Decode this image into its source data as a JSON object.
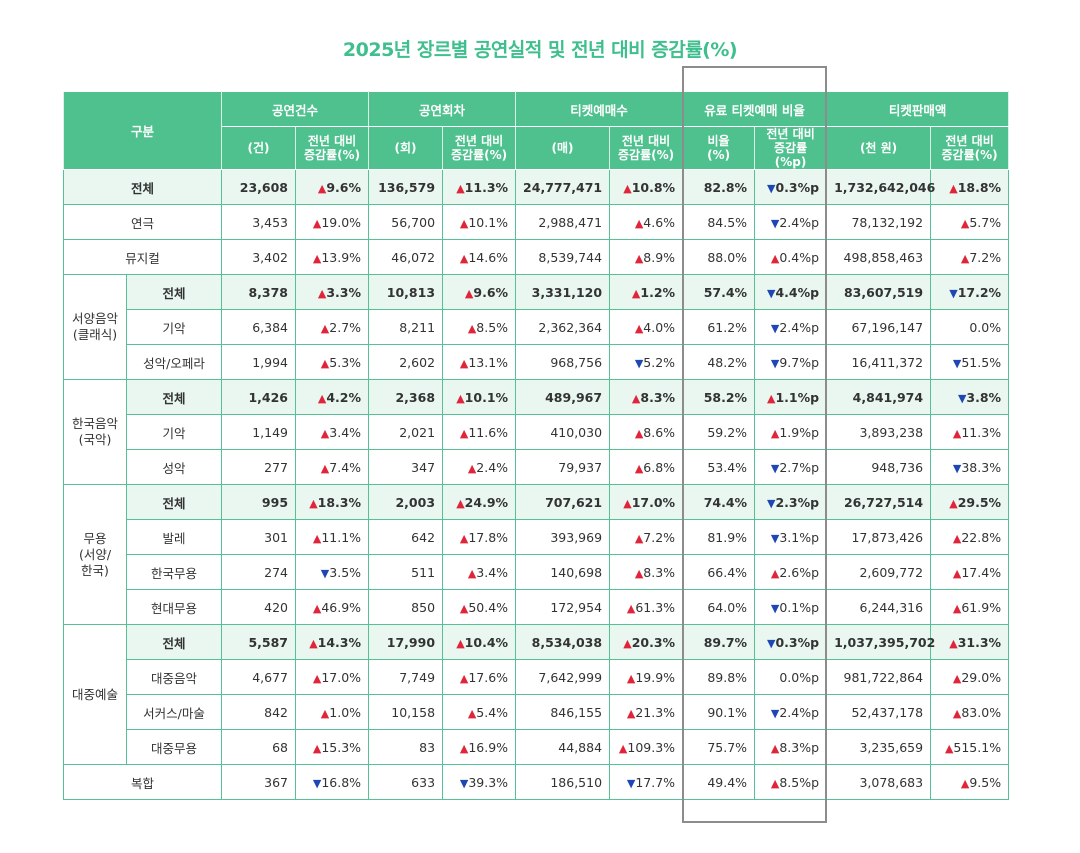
{
  "title": "2025년 장르별 공연실적 및 전년 대비 증감률(%)",
  "header": {
    "category": "구분",
    "groups": [
      "공연건수",
      "공연회차",
      "티켓예매수",
      "유료 티켓예매 비율",
      "티켓판매액"
    ],
    "subs": [
      "(건)",
      "전년 대비\n증감률(%)",
      "(회)",
      "전년 대비\n증감률(%)",
      "(매)",
      "전년 대비\n증감률(%)",
      "비율\n(%)",
      "전년 대비\n증감률(%p)",
      "(천 원)",
      "전년 대비\n증감률(%)"
    ]
  },
  "rows": [
    {
      "group": "전체",
      "label": "",
      "sub": true,
      "cells": [
        "23,608",
        "▲9.6%",
        "136,579",
        "▲11.3%",
        "24,777,471",
        "▲10.8%",
        "82.8%",
        "▼0.3%p",
        "1,732,642,046",
        "▲18.8%"
      ]
    },
    {
      "group": "연극",
      "label": "",
      "sub": false,
      "cells": [
        "3,453",
        "▲19.0%",
        "56,700",
        "▲10.1%",
        "2,988,471",
        "▲4.6%",
        "84.5%",
        "▼2.4%p",
        "78,132,192",
        "▲5.7%"
      ]
    },
    {
      "group": "뮤지컬",
      "label": "",
      "sub": false,
      "cells": [
        "3,402",
        "▲13.9%",
        "46,072",
        "▲14.6%",
        "8,539,744",
        "▲8.9%",
        "88.0%",
        "▲0.4%p",
        "498,858,463",
        "▲7.2%"
      ]
    },
    {
      "group": "서양음악\n(클래식)",
      "label": "전체",
      "sub": true,
      "cells": [
        "8,378",
        "▲3.3%",
        "10,813",
        "▲9.6%",
        "3,331,120",
        "▲1.2%",
        "57.4%",
        "▼4.4%p",
        "83,607,519",
        "▼17.2%"
      ]
    },
    {
      "group": "",
      "label": "기악",
      "sub": false,
      "cells": [
        "6,384",
        "▲2.7%",
        "8,211",
        "▲8.5%",
        "2,362,364",
        "▲4.0%",
        "61.2%",
        "▼2.4%p",
        "67,196,147",
        "0.0%"
      ]
    },
    {
      "group": "",
      "label": "성악/오페라",
      "sub": false,
      "cells": [
        "1,994",
        "▲5.3%",
        "2,602",
        "▲13.1%",
        "968,756",
        "▼5.2%",
        "48.2%",
        "▼9.7%p",
        "16,411,372",
        "▼51.5%"
      ]
    },
    {
      "group": "한국음악\n(국악)",
      "label": "전체",
      "sub": true,
      "cells": [
        "1,426",
        "▲4.2%",
        "2,368",
        "▲10.1%",
        "489,967",
        "▲8.3%",
        "58.2%",
        "▲1.1%p",
        "4,841,974",
        "▼3.8%"
      ]
    },
    {
      "group": "",
      "label": "기악",
      "sub": false,
      "cells": [
        "1,149",
        "▲3.4%",
        "2,021",
        "▲11.6%",
        "410,030",
        "▲8.6%",
        "59.2%",
        "▲1.9%p",
        "3,893,238",
        "▲11.3%"
      ]
    },
    {
      "group": "",
      "label": "성악",
      "sub": false,
      "cells": [
        "277",
        "▲7.4%",
        "347",
        "▲2.4%",
        "79,937",
        "▲6.8%",
        "53.4%",
        "▼2.7%p",
        "948,736",
        "▼38.3%"
      ]
    },
    {
      "group": "무용\n(서양/\n한국)",
      "label": "전체",
      "sub": true,
      "cells": [
        "995",
        "▲18.3%",
        "2,003",
        "▲24.9%",
        "707,621",
        "▲17.0%",
        "74.4%",
        "▼2.3%p",
        "26,727,514",
        "▲29.5%"
      ]
    },
    {
      "group": "",
      "label": "발레",
      "sub": false,
      "cells": [
        "301",
        "▲11.1%",
        "642",
        "▲17.8%",
        "393,969",
        "▲7.2%",
        "81.9%",
        "▼3.1%p",
        "17,873,426",
        "▲22.8%"
      ]
    },
    {
      "group": "",
      "label": "한국무용",
      "sub": false,
      "cells": [
        "274",
        "▼3.5%",
        "511",
        "▲3.4%",
        "140,698",
        "▲8.3%",
        "66.4%",
        "▲2.6%p",
        "2,609,772",
        "▲17.4%"
      ]
    },
    {
      "group": "",
      "label": "현대무용",
      "sub": false,
      "cells": [
        "420",
        "▲46.9%",
        "850",
        "▲50.4%",
        "172,954",
        "▲61.3%",
        "64.0%",
        "▼0.1%p",
        "6,244,316",
        "▲61.9%"
      ]
    },
    {
      "group": "대중예술",
      "label": "전체",
      "sub": true,
      "cells": [
        "5,587",
        "▲14.3%",
        "17,990",
        "▲10.4%",
        "8,534,038",
        "▲20.3%",
        "89.7%",
        "▼0.3%p",
        "1,037,395,702",
        "▲31.3%"
      ]
    },
    {
      "group": "",
      "label": "대중음악",
      "sub": false,
      "cells": [
        "4,677",
        "▲17.0%",
        "7,749",
        "▲17.6%",
        "7,642,999",
        "▲19.9%",
        "89.8%",
        "0.0%p",
        "981,722,864",
        "▲29.0%"
      ]
    },
    {
      "group": "",
      "label": "서커스/마술",
      "sub": false,
      "cells": [
        "842",
        "▲1.0%",
        "10,158",
        "▲5.4%",
        "846,155",
        "▲21.3%",
        "90.1%",
        "▼2.4%p",
        "52,437,178",
        "▲83.0%"
      ]
    },
    {
      "group": "",
      "label": "대중무용",
      "sub": false,
      "cells": [
        "68",
        "▲15.3%",
        "83",
        "▲16.9%",
        "44,884",
        "▲109.3%",
        "75.7%",
        "▲8.3%p",
        "3,235,659",
        "▲515.1%"
      ]
    },
    {
      "group": "복합",
      "label": "",
      "sub": false,
      "cells": [
        "367",
        "▼16.8%",
        "633",
        "▼39.3%",
        "186,510",
        "▼17.7%",
        "49.4%",
        "▲8.5%p",
        "3,078,683",
        "▲9.5%"
      ]
    }
  ]
}
